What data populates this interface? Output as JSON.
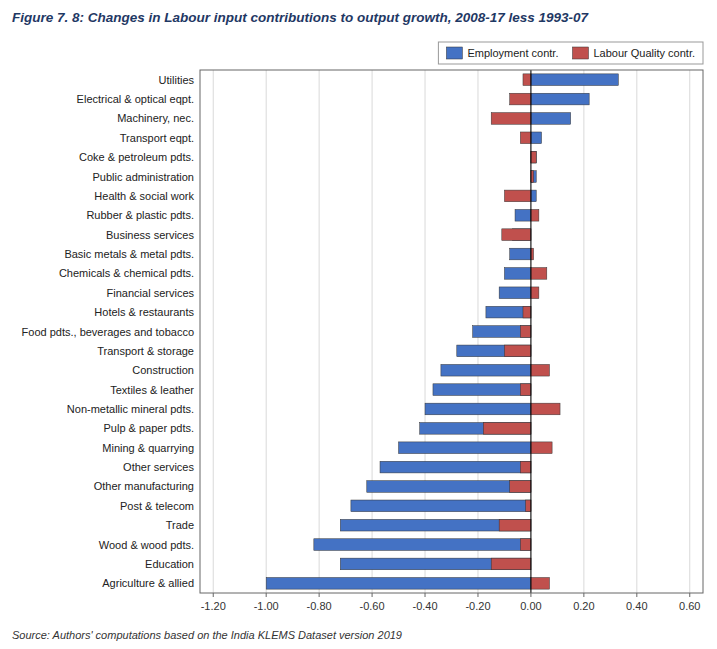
{
  "chart_data": {
    "type": "bar",
    "orientation": "horizontal",
    "title": "Figure 7. 8: Changes in Labour input contributions to output growth, 2008-17 less 1993-07",
    "source": "Source: Authors' computations based on the India KLEMS Dataset version 2019",
    "categories": [
      "Agriculture & allied",
      "Education",
      "Wood & wood pdts.",
      "Trade",
      "Post & telecom",
      "Other manufacturing",
      "Other services",
      "Mining & quarrying",
      "Pulp & paper pdts.",
      "Non-metallic mineral pdts.",
      "Textiles & leather",
      "Construction",
      "Transport & storage",
      "Food pdts., beverages and tobacco",
      "Hotels & restaurants",
      "Financial services",
      "Chemicals & chemical pdts.",
      "Basic metals & metal pdts.",
      "Business services",
      "Rubber & plastic pdts.",
      "Health & social work",
      "Public administration",
      "Coke & petroleum pdts.",
      "Transport eqpt.",
      "Machinery, nec.",
      "Electrical & optical eqpt.",
      "Utilities"
    ],
    "series": [
      {
        "name": "Employment contr.",
        "color": "#4472C4",
        "values": [
          -1.0,
          -0.72,
          -0.82,
          -0.72,
          -0.68,
          -0.62,
          -0.57,
          -0.5,
          -0.42,
          -0.4,
          -0.37,
          -0.34,
          -0.28,
          -0.22,
          -0.17,
          -0.12,
          -0.1,
          -0.08,
          -0.07,
          -0.06,
          0.02,
          0.02,
          0.02,
          0.04,
          0.15,
          0.22,
          0.33
        ]
      },
      {
        "name": "Labour Quality contr.",
        "color": "#C0504D",
        "values": [
          0.07,
          -0.15,
          -0.04,
          -0.12,
          -0.02,
          -0.08,
          -0.04,
          0.08,
          -0.18,
          0.11,
          -0.04,
          0.07,
          -0.1,
          -0.04,
          -0.03,
          0.03,
          0.06,
          0.01,
          -0.11,
          0.03,
          -0.1,
          0.01,
          0.02,
          -0.04,
          -0.15,
          -0.08,
          -0.03
        ]
      }
    ],
    "xlim": [
      -1.25,
      0.65
    ],
    "xticks": [
      {
        "value": -1.2,
        "label": "-1.20"
      },
      {
        "value": -1.0,
        "label": "-1.00"
      },
      {
        "value": -0.8,
        "label": "-0.80"
      },
      {
        "value": -0.6,
        "label": "-0.60"
      },
      {
        "value": -0.4,
        "label": "-0.40"
      },
      {
        "value": -0.2,
        "label": "-0.20"
      },
      {
        "value": 0.0,
        "label": "0.00"
      },
      {
        "value": 0.2,
        "label": "0.20"
      },
      {
        "value": 0.4,
        "label": "0.40"
      },
      {
        "value": 0.6,
        "label": "0.60"
      }
    ],
    "grid": true,
    "legend": "upper right"
  }
}
